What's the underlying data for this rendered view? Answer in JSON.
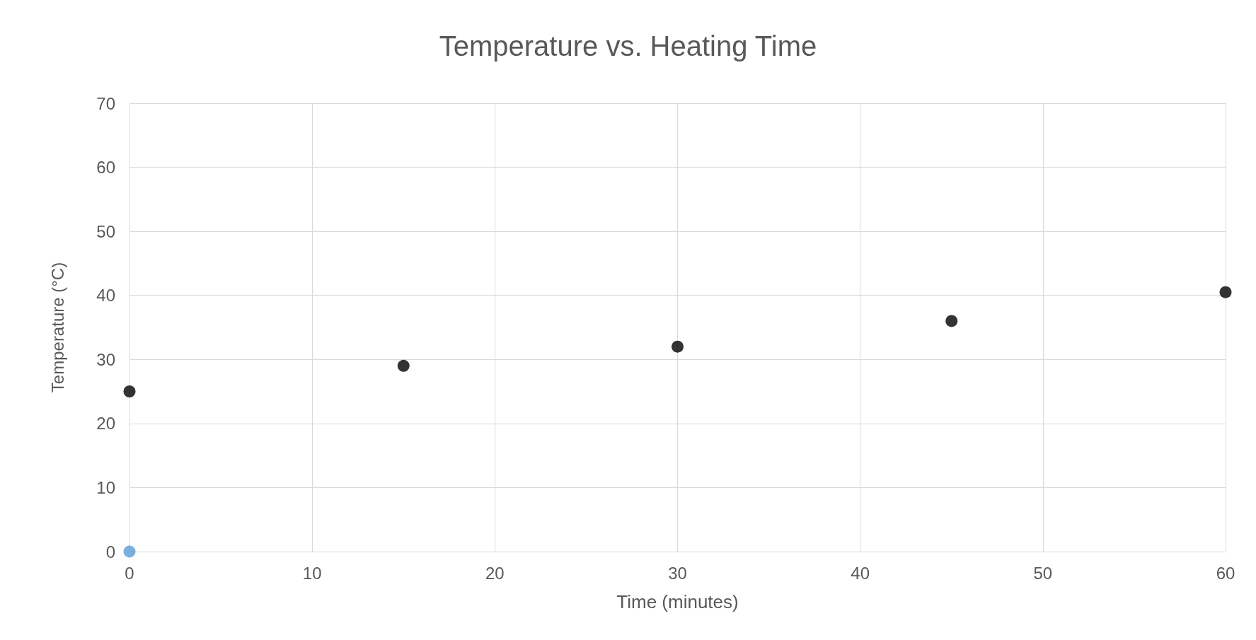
{
  "chart_data": {
    "type": "scatter",
    "title": "Temperature vs. Heating Time",
    "xlabel": "Time (minutes)",
    "ylabel": "Temperature (°C)",
    "xlim": [
      0,
      60
    ],
    "xticks": [
      0,
      10,
      20,
      30,
      40,
      50,
      60
    ],
    "ylim": [
      0,
      70
    ],
    "yticks": [
      0,
      10,
      20,
      30,
      40,
      50,
      60,
      70
    ],
    "grid": true,
    "marker": "circle",
    "series": [
      {
        "color": "#000000",
        "x": [
          0,
          15,
          30,
          45,
          60
        ],
        "values": [
          25,
          29,
          32,
          36,
          40.5
        ]
      },
      {
        "color": "#5b9bd5",
        "x": [
          0
        ],
        "values": [
          0
        ]
      }
    ]
  }
}
